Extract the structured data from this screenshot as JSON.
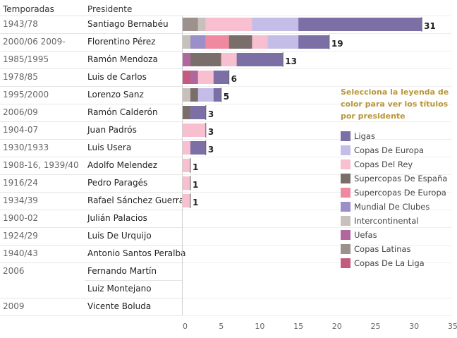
{
  "table": {
    "header_season": "Temporadas",
    "header_president": "Presidente"
  },
  "chart_data": {
    "type": "bar",
    "orientation": "horizontal",
    "stacked": true,
    "xlim": [
      0,
      35
    ],
    "xticks": [
      0,
      5,
      10,
      15,
      20,
      25,
      30,
      35
    ],
    "categories": [
      {
        "season": "1943/78",
        "president": "Santiago Bernabéu",
        "total": "31"
      },
      {
        "season": "2000/06 2009-",
        "president": "Florentino Pérez",
        "total": "19"
      },
      {
        "season": "1985/1995",
        "president": "Ramón Mendoza",
        "total": "13"
      },
      {
        "season": "1978/85",
        "president": "Luis de Carlos",
        "total": "6"
      },
      {
        "season": "1995/2000",
        "president": "Lorenzo Sanz",
        "total": "5"
      },
      {
        "season": "2006/09",
        "president": "Ramón Calderón",
        "total": "3"
      },
      {
        "season": "1904-07",
        "president": "Juan Padrós",
        "total": "3"
      },
      {
        "season": "1930/1933",
        "president": "Luis Usera",
        "total": "3"
      },
      {
        "season": "1908-16, 1939/40",
        "president": "Adolfo Melendez",
        "total": "1"
      },
      {
        "season": "1916/24",
        "president": "Pedro Paragés",
        "total": "1"
      },
      {
        "season": "1934/39",
        "president": "Rafael Sánchez Guerra",
        "total": "1"
      },
      {
        "season": "1900-02",
        "president": "Julián Palacios",
        "total": ""
      },
      {
        "season": "1924/29",
        "president": "Luis De Urquijo",
        "total": ""
      },
      {
        "season": "1940/43",
        "president": "Antonio Santos Peralba",
        "total": ""
      },
      {
        "season": "2006",
        "president": "Fernando Martín",
        "total": ""
      },
      {
        "season": "",
        "president": "Luiz Montejano",
        "total": ""
      },
      {
        "season": "2009",
        "president": "Vicente Boluda",
        "total": ""
      }
    ],
    "stacks": [
      [
        [
          "Copas Latinas",
          2
        ],
        [
          "Intercontinental",
          1
        ],
        [
          "Copas Del Rey",
          6
        ],
        [
          "Copas De Europa",
          6
        ],
        [
          "Ligas",
          16
        ]
      ],
      [
        [
          "Intercontinental",
          1
        ],
        [
          "Mundial De Clubes",
          2
        ],
        [
          "Supercopas De Europa",
          3
        ],
        [
          "Supercopas De España",
          3
        ],
        [
          "Copas Del Rey",
          2
        ],
        [
          "Copas De Europa",
          4
        ],
        [
          "Ligas",
          4
        ]
      ],
      [
        [
          "Uefas",
          1
        ],
        [
          "Supercopas De España",
          4
        ],
        [
          "Copas Del Rey",
          2
        ],
        [
          "Ligas",
          6
        ]
      ],
      [
        [
          "Copas De La Liga",
          1
        ],
        [
          "Uefas",
          1
        ],
        [
          "Copas Del Rey",
          2
        ],
        [
          "Ligas",
          2
        ]
      ],
      [
        [
          "Intercontinental",
          1
        ],
        [
          "Supercopas De España",
          1
        ],
        [
          "Copas De Europa",
          2
        ],
        [
          "Ligas",
          1
        ]
      ],
      [
        [
          "Supercopas De España",
          1
        ],
        [
          "Ligas",
          2
        ]
      ],
      [
        [
          "Copas Del Rey",
          3
        ]
      ],
      [
        [
          "Copas Del Rey",
          1
        ],
        [
          "Ligas",
          2
        ]
      ],
      [
        [
          "Copas Del Rey",
          1
        ]
      ],
      [
        [
          "Copas Del Rey",
          1
        ]
      ],
      [
        [
          "Copas Del Rey",
          1
        ]
      ],
      [],
      [],
      [],
      [],
      [],
      []
    ],
    "legend": {
      "title": "Selecciona la leyenda de color para ver los títulos por presidente",
      "placement": "right",
      "items": [
        {
          "name": "Ligas",
          "color": "#7b6fa6"
        },
        {
          "name": "Copas De Europa",
          "color": "#c4bde8"
        },
        {
          "name": "Copas Del Rey",
          "color": "#f8bfd0"
        },
        {
          "name": "Supercopas De España",
          "color": "#7a6e6b"
        },
        {
          "name": "Supercopas De Europa",
          "color": "#f0899f"
        },
        {
          "name": "Mundial De Clubes",
          "color": "#9b8fc9"
        },
        {
          "name": "Intercontinental",
          "color": "#c8c0bb"
        },
        {
          "name": "Uefas",
          "color": "#b0679e"
        },
        {
          "name": "Copas Latinas",
          "color": "#9d918e"
        },
        {
          "name": "Copas De La Liga",
          "color": "#c45a7f"
        }
      ]
    }
  }
}
